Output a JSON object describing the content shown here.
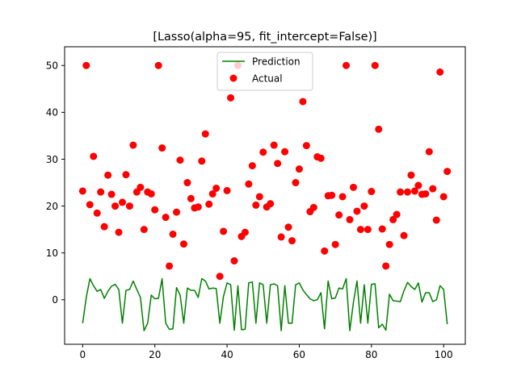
{
  "chart_data": {
    "type": "scatter",
    "title": "[Lasso(alpha=95, fit_intercept=False)]",
    "xlabel": "",
    "ylabel": "",
    "xlim": [
      -5,
      106
    ],
    "ylim": [
      -9.5,
      54
    ],
    "xticks": [
      0,
      20,
      40,
      60,
      80,
      100
    ],
    "yticks": [
      0,
      10,
      20,
      30,
      40,
      50
    ],
    "grid": false,
    "legend_position": "upper center",
    "colors": {
      "prediction": "#008000",
      "actual": "#ff0000",
      "axes": "#000000"
    },
    "series": [
      {
        "name": "Prediction",
        "kind": "line",
        "x": [
          0,
          1,
          2,
          3,
          4,
          5,
          6,
          7,
          8,
          9,
          10,
          11,
          12,
          13,
          14,
          15,
          16,
          17,
          18,
          19,
          20,
          21,
          22,
          23,
          24,
          25,
          26,
          27,
          28,
          29,
          30,
          31,
          32,
          33,
          34,
          35,
          36,
          37,
          38,
          39,
          40,
          41,
          42,
          43,
          44,
          45,
          46,
          47,
          48,
          49,
          50,
          51,
          52,
          53,
          54,
          55,
          56,
          57,
          58,
          59,
          60,
          61,
          62,
          63,
          64,
          65,
          66,
          67,
          68,
          69,
          70,
          71,
          72,
          73,
          74,
          75,
          76,
          77,
          78,
          79,
          80,
          81,
          82,
          83,
          84,
          85,
          86,
          87,
          88,
          89,
          90,
          91,
          92,
          93,
          94,
          95,
          96,
          97,
          98,
          99,
          100,
          101
        ],
        "y": [
          -5,
          0.5,
          4.5,
          3,
          1.8,
          2.2,
          0.3,
          1.8,
          2.9,
          3.3,
          2.2,
          -5,
          2,
          2.2,
          4,
          2.2,
          0.5,
          -6.6,
          -5,
          1,
          0.2,
          0.3,
          4.5,
          -5,
          -6.3,
          -6.2,
          2.6,
          1,
          -5,
          2.5,
          2,
          2,
          0.5,
          4.5,
          4,
          2.3,
          2.5,
          2.4,
          -5,
          0.7,
          3.6,
          3.2,
          -6.5,
          3,
          -6.4,
          -6.3,
          3.6,
          3.8,
          -5,
          3.6,
          3.2,
          -5,
          3.2,
          3.4,
          3,
          -6.6,
          3,
          -5,
          -5,
          3.2,
          3.6,
          2.1,
          1.1,
          0.2,
          -0.2,
          0,
          1.5,
          -6.2,
          4,
          0.2,
          0.4,
          2.5,
          2.3,
          4.5,
          -6.6,
          -0.6,
          4,
          -5,
          3.2,
          -5,
          3.3,
          3.4,
          -6,
          -5.2,
          -6.5,
          1.2,
          -0.2,
          -0.3,
          -0.4,
          1.9,
          3.7,
          2.8,
          2.2,
          3.6,
          -0.5,
          1.5,
          1.5,
          -0.4,
          0,
          3,
          2.2,
          -5.2
        ]
      },
      {
        "name": "Actual",
        "kind": "scatter",
        "x": [
          0,
          1,
          2,
          3,
          4,
          5,
          6,
          7,
          8,
          9,
          10,
          11,
          12,
          13,
          14,
          15,
          16,
          17,
          18,
          19,
          20,
          21,
          22,
          23,
          24,
          25,
          26,
          27,
          28,
          29,
          30,
          31,
          32,
          33,
          34,
          35,
          36,
          37,
          38,
          39,
          40,
          41,
          42,
          43,
          44,
          45,
          46,
          47,
          48,
          49,
          50,
          51,
          52,
          53,
          54,
          55,
          56,
          57,
          58,
          59,
          60,
          61,
          62,
          63,
          64,
          65,
          66,
          67,
          68,
          69,
          70,
          71,
          72,
          73,
          74,
          75,
          76,
          77,
          78,
          79,
          80,
          81,
          82,
          83,
          84,
          85,
          86,
          87,
          88,
          89,
          90,
          91,
          92,
          93,
          94,
          95,
          96,
          97,
          98,
          99,
          100,
          101
        ],
        "y": [
          23.2,
          50,
          20.3,
          30.6,
          18.5,
          23,
          15.6,
          26.6,
          22.5,
          20,
          14.4,
          20.8,
          26.7,
          20,
          33,
          23,
          24,
          15,
          23,
          22.6,
          19.2,
          50,
          32.4,
          17.6,
          7.2,
          14,
          18.7,
          29.8,
          11.9,
          25,
          21.6,
          19.6,
          19.8,
          29.6,
          35.4,
          20.4,
          22.6,
          23.8,
          5,
          14.6,
          23.3,
          43.1,
          8.3,
          50,
          13.5,
          14.4,
          24.7,
          28.6,
          20.2,
          22,
          31.5,
          19.8,
          20.5,
          33,
          29.1,
          13.4,
          31.6,
          15.5,
          12.6,
          25,
          27.9,
          42.3,
          32.9,
          18.8,
          19.7,
          30.5,
          30.2,
          10.4,
          22.2,
          22.3,
          11.8,
          18.1,
          22,
          50,
          17.1,
          24,
          18.9,
          15,
          20,
          15,
          23.1,
          50,
          36.4,
          15.1,
          7.2,
          11.8,
          17.1,
          18.2,
          23,
          13.7,
          23,
          26.6,
          23.2,
          24.4,
          22.5,
          22.6,
          31.6,
          23.7,
          17,
          48.6,
          22,
          27.4
        ]
      }
    ]
  }
}
